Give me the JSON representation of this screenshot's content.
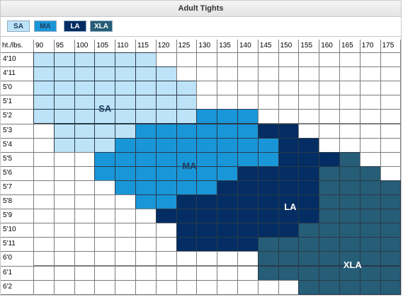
{
  "title": "Adult Tights",
  "legend": [
    {
      "code": "SA",
      "color": "#bde3f8",
      "text_color": "#1f3d5a"
    },
    {
      "code": "MA",
      "color": "#1996d8",
      "text_color": "#1f3d5a"
    },
    {
      "code": "LA",
      "color": "#042d63",
      "text_color": "#ffffff"
    },
    {
      "code": "XLA",
      "color": "#265d77",
      "text_color": "#ffffff"
    }
  ],
  "corner_label": "ht./lbs.",
  "weights": [
    "90",
    "95",
    "100",
    "105",
    "110",
    "115",
    "120",
    "125",
    "130",
    "135",
    "140",
    "145",
    "150",
    "155",
    "160",
    "165",
    "170",
    "175"
  ],
  "heights": [
    "4'10",
    "4'11",
    "5'0",
    "5'1",
    "5'2",
    "5'3",
    "5'4",
    "5'5",
    "5'6",
    "5'7",
    "5'8",
    "5'9",
    "5'10",
    "5'11",
    "6'0",
    "6'1",
    "6'2"
  ],
  "grid_rows": [
    "SSSSSS------------",
    "SSSSSSS-----------",
    "SSSSSSSS----------",
    "SSSSSSSS----------",
    "SSSSSSSSMMM-------",
    "-SSSSMMMMMMLL-----",
    "-SSSMMMMMMMMLL----",
    "---MMMMMMMMMLLLX--",
    "---MMMMMMMLLLLXXX-",
    "----MMMMMLLLLLXXXX",
    "-----MMLLLLLLLXXXX",
    "------LLLLLLLLXXXX",
    "-------LLLLLLXXXXX",
    "-------LLLLXXXXXXX",
    "-----------XXXXXXX",
    "-----------XXXXXXX",
    "-------------XXXXX"
  ],
  "zones": {
    "S": {
      "label": "SA",
      "text_color": "#1f3d5a"
    },
    "M": {
      "label": "MA",
      "text_color": "#1f3d5a"
    },
    "L": {
      "label": "LA",
      "text_color": "#ffffff"
    },
    "X": {
      "label": "XLA",
      "text_color": "#ffffff"
    }
  },
  "colors": {
    "S": "#bde3f8",
    "M": "#1996d8",
    "L": "#042d63",
    "X": "#265d77",
    "-": "#ffffff"
  }
}
